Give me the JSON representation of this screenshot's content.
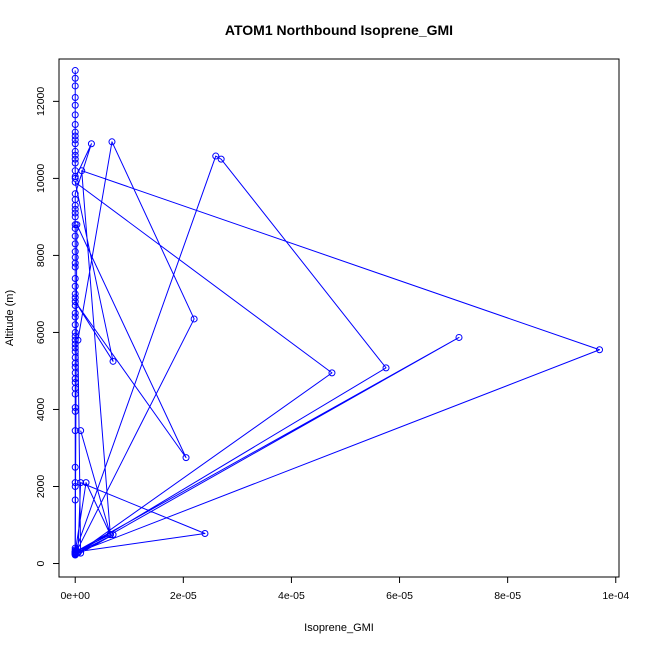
{
  "chart_data": {
    "type": "line",
    "title": "ATOM1 Northbound Isoprene_GMI",
    "xlabel": "Isoprene_GMI",
    "ylabel": "Altitude (m)",
    "xlim": [
      -3e-06,
      0.0001006
    ],
    "ylim": [
      -350,
      13100
    ],
    "x_ticks": [
      0,
      2e-05,
      4e-05,
      6e-05,
      8e-05,
      0.0001
    ],
    "x_tick_labels": [
      "0e+00",
      "2e-05",
      "4e-05",
      "6e-05",
      "8e-05",
      "1e-04"
    ],
    "y_ticks": [
      0,
      2000,
      4000,
      6000,
      8000,
      10000,
      12000
    ],
    "y_tick_labels": [
      "0",
      "2000",
      "4000",
      "6000",
      "8000",
      "10000",
      "12000"
    ],
    "series_color": "#0000ff",
    "grid": false,
    "series": [
      {
        "x": [
          0,
          0,
          0,
          0,
          0,
          0,
          0,
          0,
          0,
          0,
          0,
          0,
          0,
          0,
          0,
          0,
          0,
          0,
          3e-06,
          0,
          0,
          0,
          0,
          0,
          0,
          0,
          0,
          0,
          0,
          0,
          0,
          0,
          0,
          0,
          0,
          0,
          0,
          0,
          0,
          0,
          0,
          0,
          0,
          0,
          0,
          0,
          0,
          0,
          0,
          0,
          0,
          0,
          0,
          0,
          0,
          0,
          0,
          0,
          0,
          0,
          0,
          0,
          0,
          0,
          0,
          0,
          0,
          0,
          0,
          0,
          0,
          0,
          0,
          0,
          0
        ],
        "y": [
          12800,
          12600,
          12400,
          12100,
          11900,
          11650,
          11400,
          11200,
          11100,
          11000,
          10900,
          10700,
          10600,
          10500,
          10400,
          10200,
          10050,
          10000,
          10900,
          9600,
          9450,
          9300,
          9200,
          9100,
          9000,
          8800,
          8700,
          8500,
          8300,
          8100,
          7950,
          7800,
          7700,
          7400,
          7200,
          7000,
          6900,
          6700,
          6500,
          6400,
          6200,
          6000,
          5900,
          5800,
          5700,
          5600,
          5500,
          5350,
          5200,
          5100,
          4950,
          4800,
          4700,
          4550,
          4400,
          4050,
          3950,
          3450,
          2500,
          2100,
          2000,
          1650,
          400,
          350,
          320,
          300,
          280,
          260,
          250,
          240,
          230,
          220,
          280,
          300,
          260
        ]
      },
      {
        "x": [
          1e-06,
          6.5e-06,
          2e-06,
          0,
          3e-07,
          2.05e-05,
          0,
          7e-06,
          0,
          4.75e-05,
          5e-07,
          1e-06,
          2.4e-05,
          0,
          6.5e-06,
          3e-07,
          2.2e-05,
          6.8e-06,
          5e-07,
          1e-06,
          7e-06,
          3e-07,
          5.75e-05,
          2.7e-05,
          2.6e-05,
          0,
          7.1e-05,
          6.5e-06,
          1.2e-06,
          9.7e-05,
          6e-07
        ],
        "y": [
          3450,
          750,
          2100,
          300,
          8800,
          2750,
          6800,
          5250,
          9900,
          4950,
          280,
          2100,
          780,
          300,
          750,
          330,
          6350,
          10950,
          5800,
          270,
          750,
          270,
          5080,
          10500,
          10580,
          300,
          5870,
          750,
          10200,
          5550,
          300
        ]
      }
    ]
  }
}
